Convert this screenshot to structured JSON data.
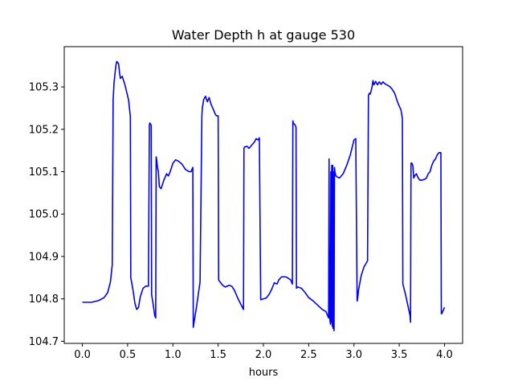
{
  "chart_data": {
    "type": "line",
    "title": "Water Depth h at gauge 530",
    "xlabel": "hours",
    "ylabel": "",
    "xlim": [
      -0.2,
      4.2
    ],
    "ylim": [
      104.695,
      105.395
    ],
    "xticks": [
      0.0,
      0.5,
      1.0,
      1.5,
      2.0,
      2.5,
      3.0,
      3.5,
      4.0
    ],
    "xtick_labels": [
      "0.0",
      "0.5",
      "1.0",
      "1.5",
      "2.0",
      "2.5",
      "3.0",
      "3.5",
      "4.0"
    ],
    "yticks": [
      104.7,
      104.8,
      104.9,
      105.0,
      105.1,
      105.2,
      105.3
    ],
    "ytick_labels": [
      "104.7",
      "104.8",
      "104.9",
      "105.0",
      "105.1",
      "105.2",
      "105.3"
    ],
    "grid": false,
    "legend": "none",
    "colors": {
      "line": "#0000ff",
      "axes": "#000000",
      "background": "#ffffff"
    },
    "series": [
      {
        "x": [
          0.0,
          0.1,
          0.18,
          0.24,
          0.28,
          0.31,
          0.33,
          0.34,
          0.345,
          0.35,
          0.37,
          0.38,
          0.4,
          0.41,
          0.42,
          0.44,
          0.47,
          0.51,
          0.53,
          0.535,
          0.56,
          0.58,
          0.6,
          0.62,
          0.64,
          0.67,
          0.7,
          0.73,
          0.74,
          0.745,
          0.76,
          0.765,
          0.78,
          0.8,
          0.81,
          0.815,
          0.82,
          0.83,
          0.84,
          0.85,
          0.87,
          0.9,
          0.93,
          0.95,
          0.97,
          1.0,
          1.03,
          1.06,
          1.1,
          1.14,
          1.18,
          1.2,
          1.22,
          1.225,
          1.23,
          1.26,
          1.3,
          1.32,
          1.325,
          1.34,
          1.36,
          1.38,
          1.4,
          1.42,
          1.45,
          1.47,
          1.48,
          1.5,
          1.505,
          1.52,
          1.55,
          1.58,
          1.62,
          1.65,
          1.68,
          1.72,
          1.78,
          1.785,
          1.79,
          1.82,
          1.84,
          1.88,
          1.9,
          1.92,
          1.94,
          1.95,
          1.955,
          1.97,
          2.0,
          2.03,
          2.06,
          2.09,
          2.12,
          2.15,
          2.17,
          2.2,
          2.25,
          2.3,
          2.32,
          2.325,
          2.33,
          2.35,
          2.36,
          2.365,
          2.38,
          2.42,
          2.46,
          2.5,
          2.55,
          2.6,
          2.65,
          2.69,
          2.71,
          2.72,
          2.725,
          2.73,
          2.74,
          2.745,
          2.75,
          2.755,
          2.76,
          2.765,
          2.77,
          2.775,
          2.78,
          2.785,
          2.79,
          2.795,
          2.8,
          2.805,
          2.81,
          2.84,
          2.88,
          2.92,
          2.96,
          3.0,
          3.02,
          3.035,
          3.04,
          3.05,
          3.08,
          3.11,
          3.15,
          3.16,
          3.17,
          3.18,
          3.2,
          3.21,
          3.22,
          3.24,
          3.26,
          3.28,
          3.3,
          3.32,
          3.34,
          3.36,
          3.38,
          3.4,
          3.42,
          3.45,
          3.48,
          3.52,
          3.535,
          3.54,
          3.57,
          3.6,
          3.62,
          3.625,
          3.63,
          3.64,
          3.65,
          3.66,
          3.67,
          3.69,
          3.71,
          3.73,
          3.75,
          3.78,
          3.8,
          3.82,
          3.84,
          3.86,
          3.88,
          3.9,
          3.92,
          3.94,
          3.96,
          3.965,
          3.97,
          3.98,
          3.99,
          4.0
        ],
        "values": [
          104.792,
          104.792,
          104.796,
          104.803,
          104.815,
          104.84,
          104.88,
          105.27,
          105.29,
          105.31,
          105.35,
          105.36,
          105.355,
          105.335,
          105.32,
          105.325,
          105.305,
          105.27,
          105.23,
          104.85,
          104.82,
          104.79,
          104.775,
          104.78,
          104.805,
          104.825,
          104.83,
          104.83,
          105.21,
          105.215,
          105.21,
          104.81,
          104.79,
          104.76,
          104.755,
          105.135,
          105.13,
          105.11,
          105.1,
          105.065,
          105.06,
          105.08,
          105.095,
          105.09,
          105.1,
          105.12,
          105.128,
          105.125,
          105.118,
          105.105,
          105.1,
          105.1,
          105.11,
          104.733,
          104.74,
          104.78,
          104.84,
          105.23,
          105.25,
          105.27,
          105.278,
          105.265,
          105.275,
          105.26,
          105.245,
          105.235,
          105.232,
          105.232,
          104.845,
          104.84,
          104.832,
          104.828,
          104.832,
          104.83,
          104.82,
          104.8,
          104.775,
          105.155,
          105.158,
          105.16,
          105.155,
          105.165,
          105.17,
          105.178,
          105.175,
          105.178,
          105.18,
          104.798,
          104.8,
          104.802,
          104.81,
          104.822,
          104.838,
          104.835,
          104.845,
          104.852,
          104.852,
          104.845,
          104.835,
          105.22,
          105.215,
          105.21,
          105.205,
          104.825,
          104.828,
          104.825,
          104.815,
          104.803,
          104.795,
          104.785,
          104.775,
          104.77,
          104.76,
          104.755,
          105.13,
          104.76,
          104.74,
          105.1,
          104.745,
          105.115,
          104.735,
          105.115,
          104.73,
          105.1,
          104.725,
          105.11,
          105.1,
          105.095,
          105.09,
          105.09,
          105.088,
          105.085,
          105.095,
          105.115,
          105.14,
          105.175,
          105.178,
          104.795,
          104.8,
          104.82,
          104.855,
          104.875,
          104.89,
          105.28,
          105.285,
          105.283,
          105.3,
          105.315,
          105.305,
          105.313,
          105.305,
          105.312,
          105.306,
          105.312,
          105.308,
          105.305,
          105.303,
          105.3,
          105.295,
          105.285,
          105.265,
          105.245,
          105.225,
          104.835,
          104.81,
          104.78,
          104.76,
          104.745,
          105.12,
          105.12,
          105.115,
          105.085,
          105.09,
          105.095,
          105.085,
          105.08,
          105.08,
          105.082,
          105.085,
          105.095,
          105.1,
          105.115,
          105.125,
          105.13,
          105.14,
          105.145,
          105.145,
          104.765,
          104.765,
          104.77,
          104.775,
          104.78
        ]
      }
    ]
  }
}
